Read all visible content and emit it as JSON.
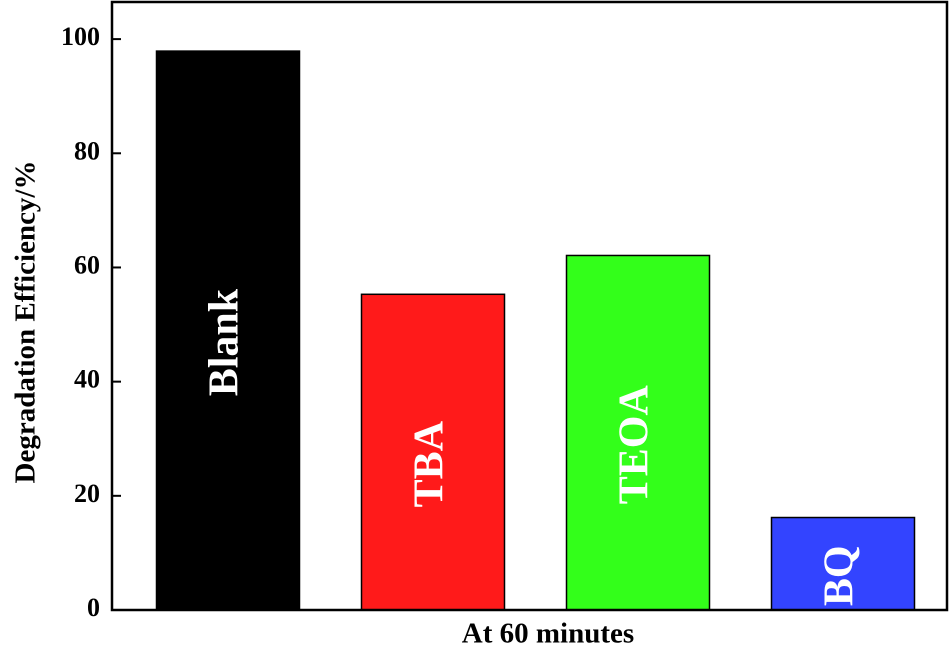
{
  "chart_data": {
    "type": "bar",
    "x_label": "At 60 minutes",
    "y_label": "Degradation Efficiency/%",
    "categories": [
      "Blank",
      "TBA",
      "TEOA",
      "BQ"
    ],
    "values": [
      97.9,
      55.3,
      62.1,
      16.2
    ],
    "colors": [
      "#000000",
      "#ff1a1a",
      "#33ff1a",
      "#3344ff"
    ],
    "ylim": [
      0,
      106.5
    ],
    "yticks": [
      0,
      20,
      40,
      60,
      80,
      100
    ]
  }
}
